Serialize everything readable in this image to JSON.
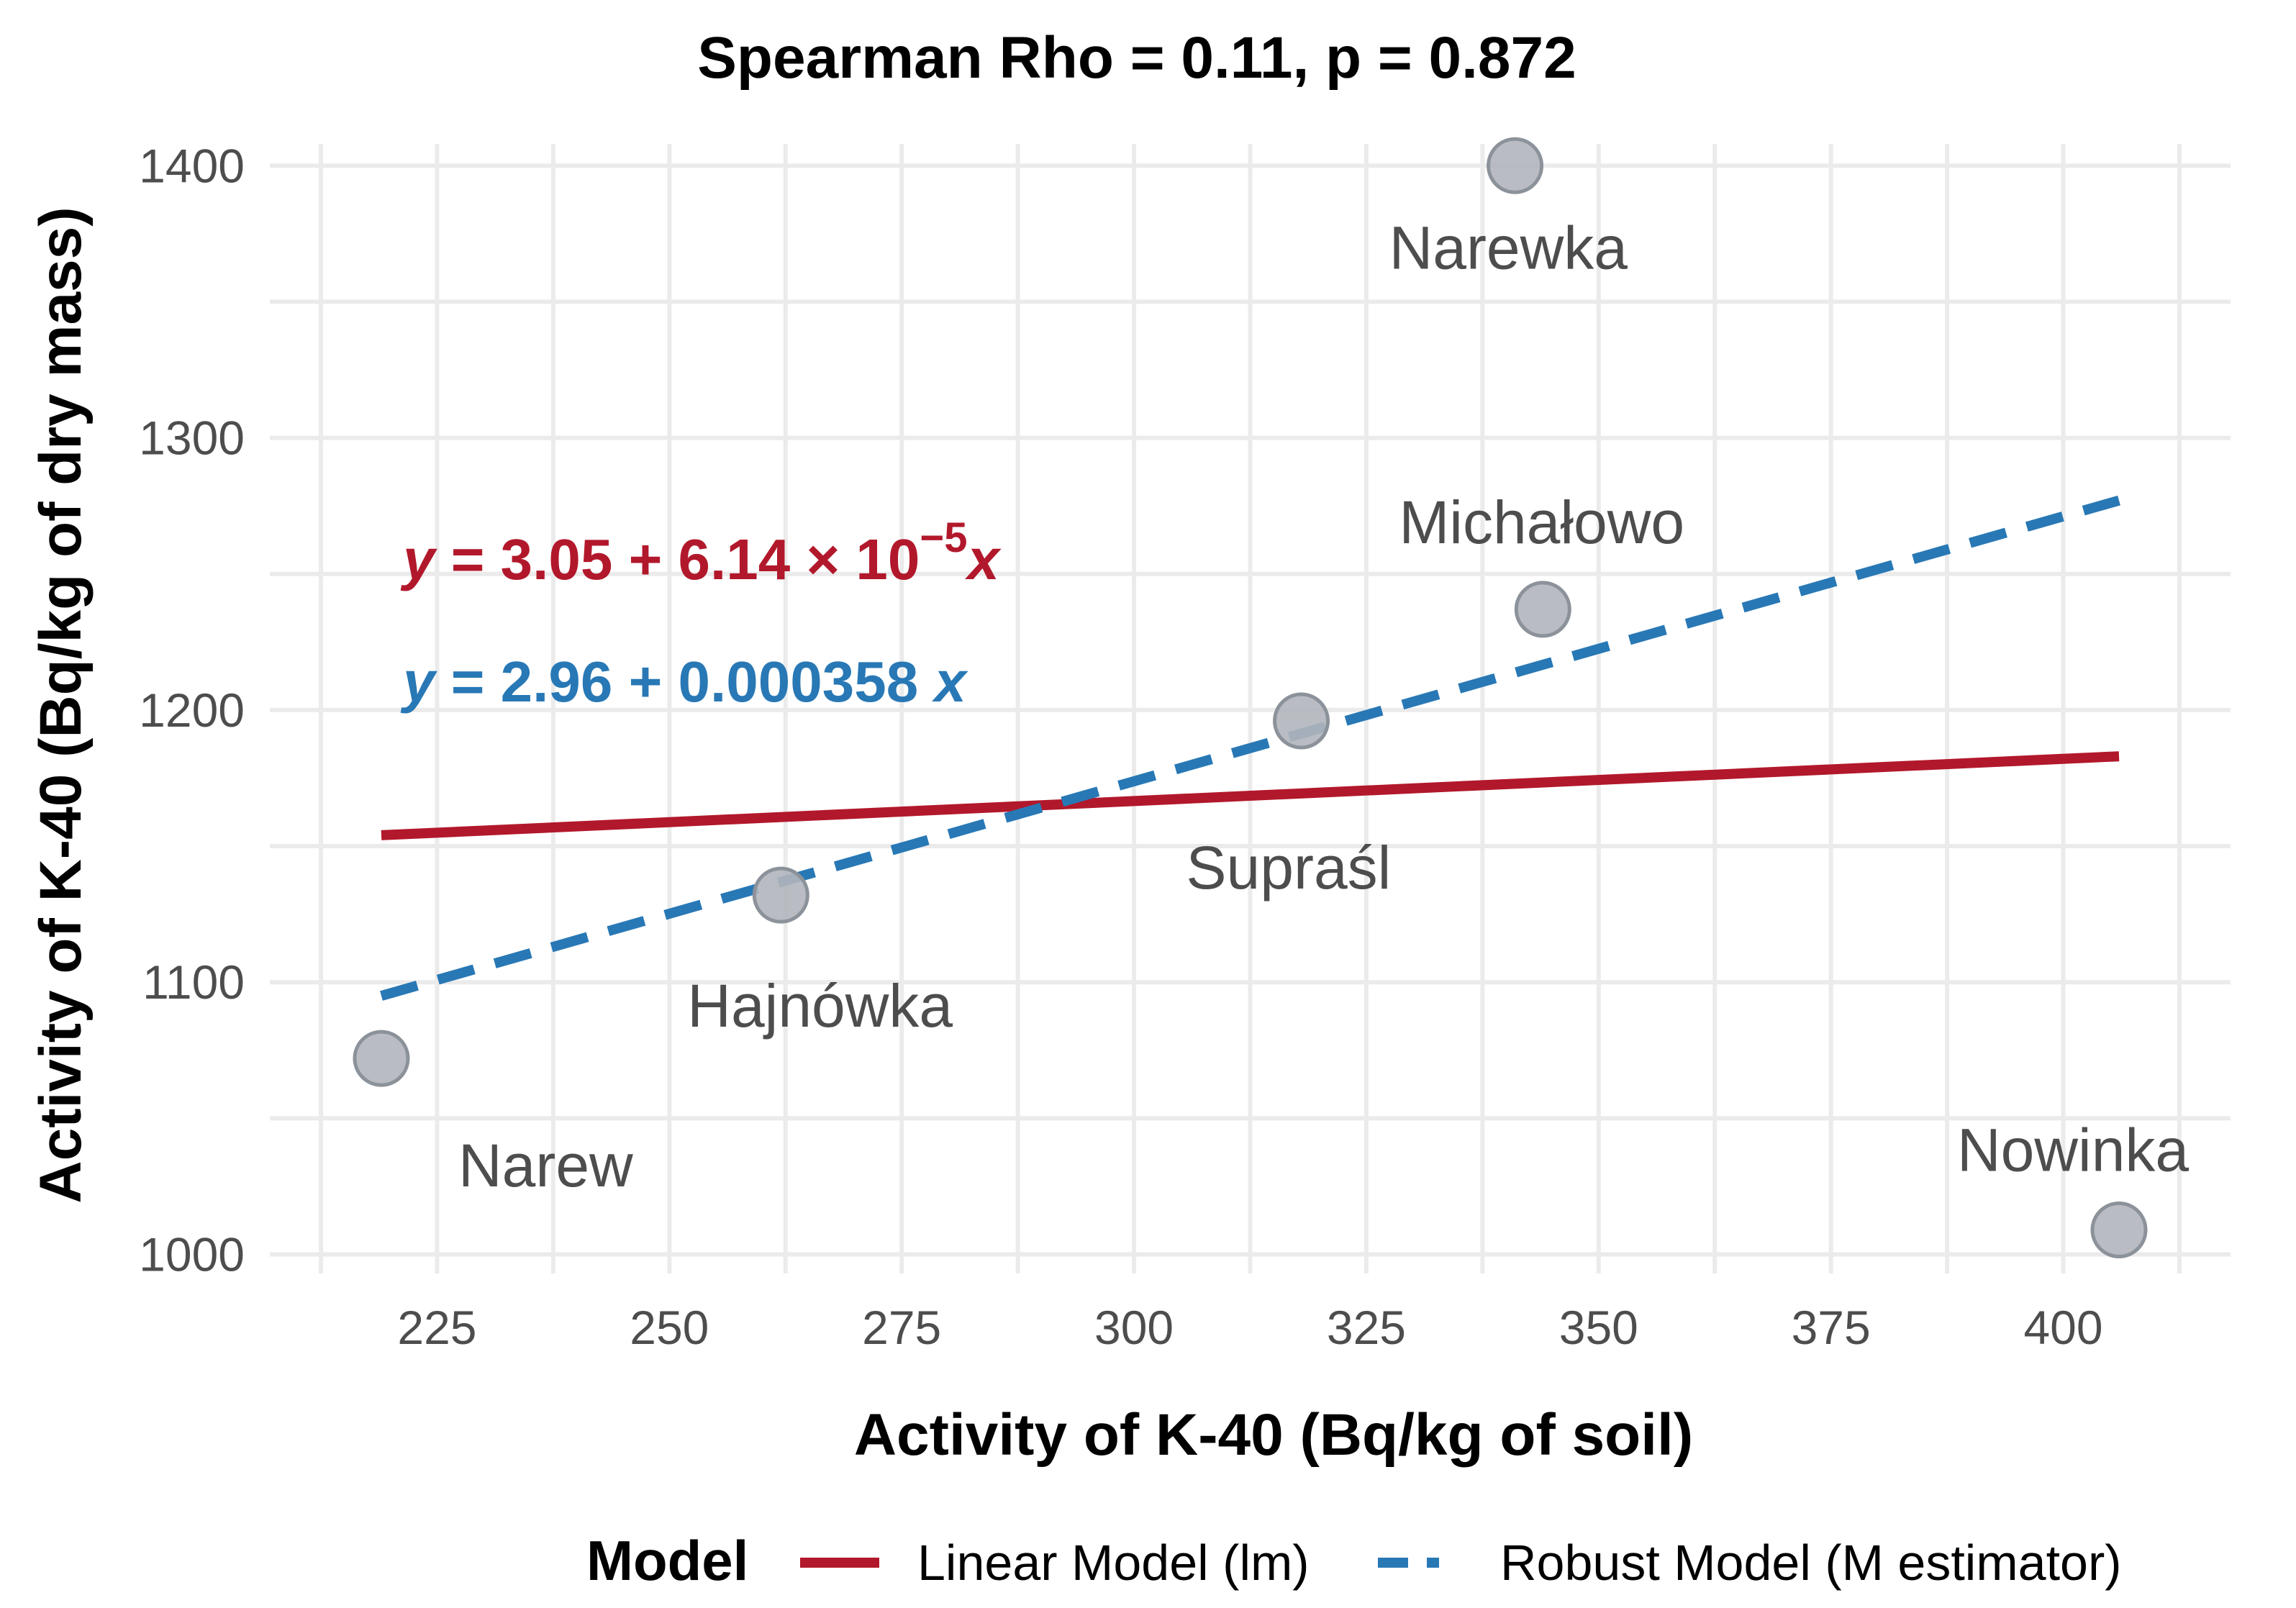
{
  "chart_data": {
    "type": "scatter",
    "title": "Spearman Rho = 0.11, p = 0.872",
    "xlabel": "Activity of K-40 (Bq/kg of soil)",
    "ylabel": "Activity of K-40 (Bq/kg of dry mass)",
    "xlim": [
      207,
      418
    ],
    "ylim": [
      993,
      1408
    ],
    "x_ticks": [
      225,
      250,
      275,
      300,
      325,
      350,
      375,
      400
    ],
    "y_ticks": [
      1000,
      1100,
      1200,
      1300,
      1400
    ],
    "grid": true,
    "points": [
      {
        "label": "Narew",
        "x": 219,
        "y": 1072
      },
      {
        "label": "Hajnówka",
        "x": 262,
        "y": 1132
      },
      {
        "label": "Supraśl",
        "x": 318,
        "y": 1196
      },
      {
        "label": "Narewka",
        "x": 341,
        "y": 1400
      },
      {
        "label": "Michałowo",
        "x": 344,
        "y": 1237
      },
      {
        "label": "Nowinka",
        "x": 406,
        "y": 1009
      }
    ],
    "series": [
      {
        "name": "Linear Model (lm)",
        "color": "#b2182b",
        "style": "solid",
        "x": [
          219,
          406
        ],
        "y": [
          1154,
          1183
        ]
      },
      {
        "name": "Robust Model (M estimator)",
        "color": "#2878b5",
        "style": "dashed",
        "x": [
          219,
          406
        ],
        "y": [
          1095,
          1277
        ]
      }
    ],
    "equations": [
      {
        "series": "Linear Model (lm)",
        "color": "#b2182b",
        "y": "y",
        "eq": " = 3.05 + 6.14 × 10",
        "exp": "−5",
        "x": "x"
      },
      {
        "series": "Robust Model (M estimator)",
        "color": "#2878b5",
        "y": "y",
        "eq": " = 2.96 + 0.000358 ",
        "exp": "",
        "x": "x"
      }
    ],
    "legend": {
      "title": "Model",
      "position": "bottom"
    }
  }
}
